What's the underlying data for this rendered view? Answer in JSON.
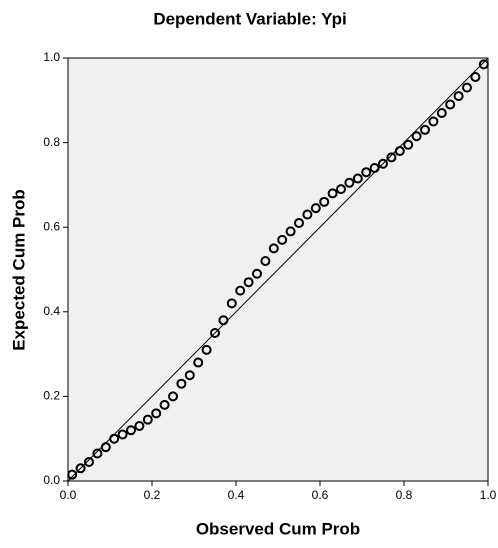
{
  "chart_data": {
    "type": "scatter",
    "title": "Dependent Variable: Ypi",
    "x_label": "Observed Cum Prob",
    "y_label": "Expected Cum Prob",
    "x": [
      0.01,
      0.03,
      0.05,
      0.07,
      0.09,
      0.11,
      0.13,
      0.15,
      0.17,
      0.19,
      0.21,
      0.23,
      0.25,
      0.27,
      0.29,
      0.31,
      0.33,
      0.35,
      0.37,
      0.39,
      0.41,
      0.43,
      0.45,
      0.47,
      0.49,
      0.51,
      0.53,
      0.55,
      0.57,
      0.59,
      0.61,
      0.63,
      0.65,
      0.67,
      0.69,
      0.71,
      0.73,
      0.75,
      0.77,
      0.79,
      0.81,
      0.83,
      0.85,
      0.87,
      0.89,
      0.91,
      0.93,
      0.95,
      0.97,
      0.99
    ],
    "values": [
      0.015,
      0.03,
      0.045,
      0.065,
      0.08,
      0.1,
      0.11,
      0.12,
      0.13,
      0.145,
      0.16,
      0.18,
      0.2,
      0.23,
      0.25,
      0.28,
      0.31,
      0.35,
      0.38,
      0.42,
      0.45,
      0.47,
      0.49,
      0.52,
      0.55,
      0.57,
      0.59,
      0.61,
      0.63,
      0.645,
      0.66,
      0.68,
      0.69,
      0.705,
      0.715,
      0.73,
      0.74,
      0.75,
      0.765,
      0.78,
      0.795,
      0.815,
      0.83,
      0.85,
      0.87,
      0.89,
      0.91,
      0.93,
      0.955,
      0.985
    ],
    "color": "#000000",
    "xlim": [
      0,
      1
    ],
    "ylim": [
      0,
      1
    ],
    "xticks": [
      {
        "value": 0,
        "label": "0.0"
      },
      0.2,
      0.4,
      0.6,
      0.8,
      {
        "value": 1,
        "label": "1.0"
      }
    ],
    "yticks": [
      {
        "value": 0,
        "label": "0.0"
      },
      0.2,
      0.4,
      0.6,
      0.8,
      {
        "value": 1,
        "label": "1.0"
      }
    ]
  }
}
